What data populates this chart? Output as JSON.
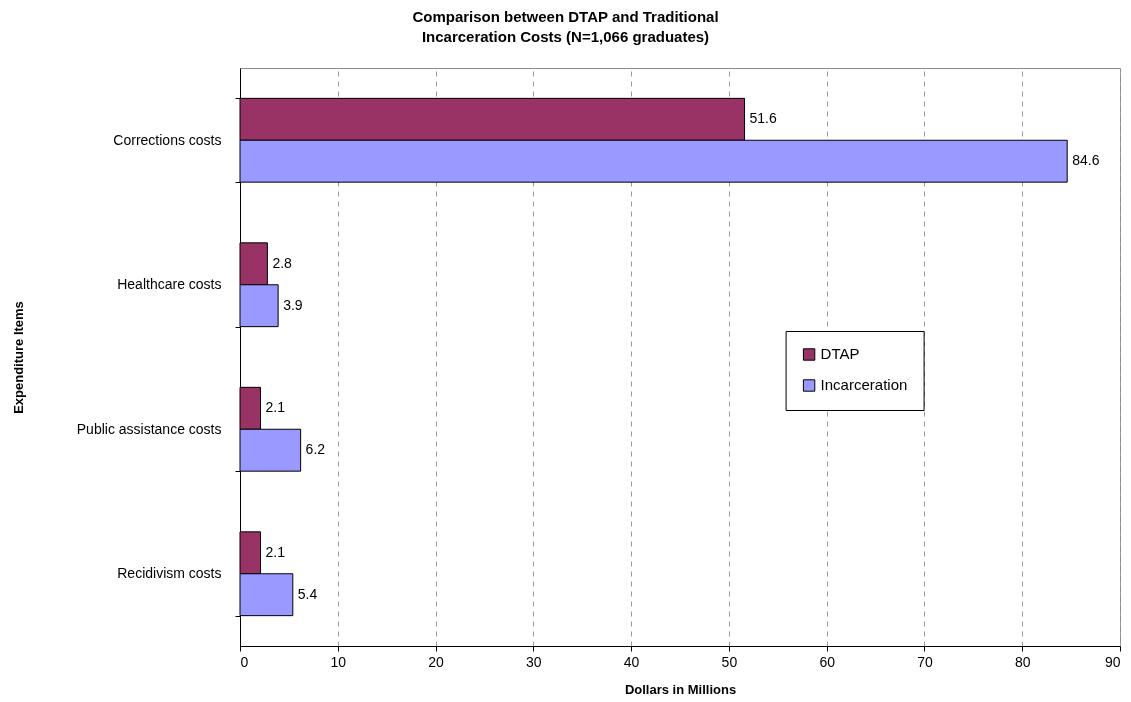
{
  "chart_data": {
    "type": "bar",
    "orientation": "horizontal",
    "title": "Comparison between DTAP and Traditional Incarceration Costs (N=1,066 graduates)",
    "xlabel": "Dollars in Millions",
    "ylabel": "Expenditure Items",
    "categories": [
      "Corrections costs",
      "Healthcare costs",
      "Public assistance costs",
      "Recidivism costs"
    ],
    "series": [
      {
        "name": "DTAP",
        "color": "#993366",
        "values": [
          51.6,
          2.8,
          2.1,
          2.1
        ]
      },
      {
        "name": "Incarceration",
        "color": "#9999ff",
        "values": [
          84.6,
          3.9,
          6.2,
          5.4
        ]
      }
    ],
    "xlim": [
      0,
      90
    ],
    "xticks": [
      0,
      10,
      20,
      30,
      40,
      50,
      60,
      70,
      80,
      90
    ],
    "grid": "x",
    "legend": "right",
    "data_labels": true
  }
}
